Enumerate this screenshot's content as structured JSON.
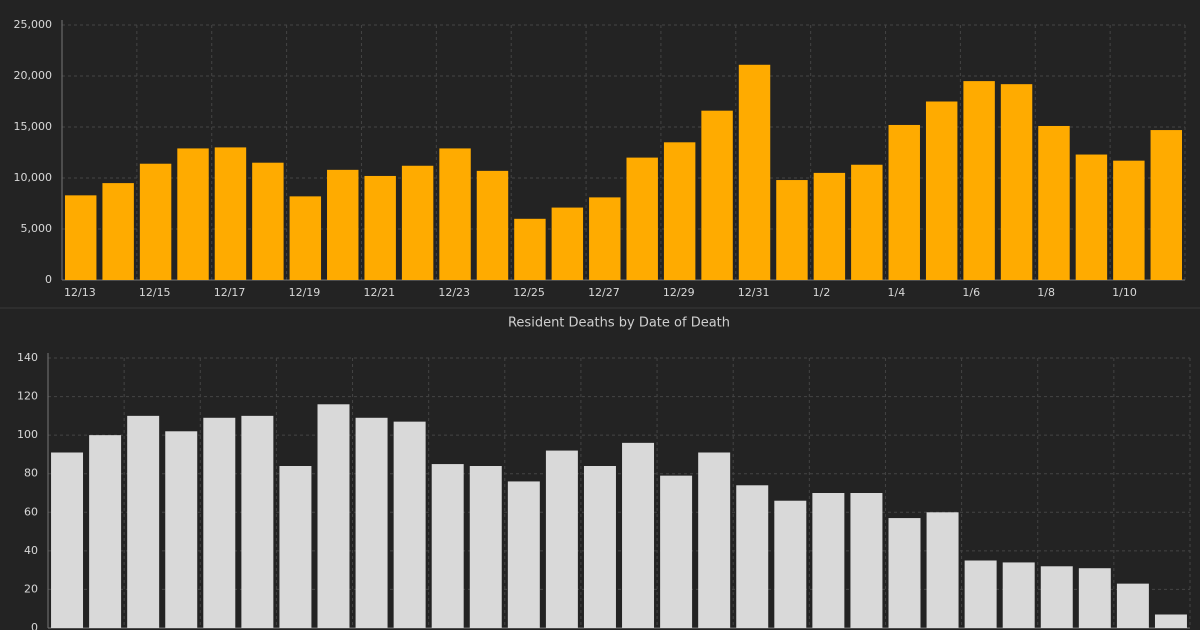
{
  "chart_data": [
    {
      "type": "bar",
      "categories": [
        "12/13",
        null,
        "12/15",
        null,
        "12/17",
        null,
        "12/19",
        null,
        "12/21",
        null,
        "12/23",
        null,
        "12/25",
        null,
        "12/27",
        null,
        "12/29",
        null,
        "12/31",
        null,
        "1/2",
        null,
        "1/4",
        null,
        "1/6",
        null,
        "1/8",
        null,
        "1/10",
        null
      ],
      "values": [
        8300,
        9500,
        11400,
        12900,
        13000,
        11500,
        8200,
        10800,
        10200,
        11200,
        12900,
        10700,
        6000,
        7100,
        8100,
        12000,
        13500,
        16600,
        21100,
        9800,
        10500,
        11300,
        15200,
        17500,
        19500,
        19200,
        15100,
        12300,
        11700,
        14700
      ],
      "color": "#ffab00",
      "ylim": [
        0,
        25000
      ],
      "yticks": [
        0,
        {
          "value": 5000,
          "label": "5,000"
        },
        {
          "value": 10000,
          "label": "10,000"
        },
        {
          "value": 15000,
          "label": "15,000"
        },
        {
          "value": 20000,
          "label": "20,000"
        },
        {
          "value": 25000,
          "label": "25,000"
        }
      ],
      "grid": true
    },
    {
      "type": "bar",
      "title": "Resident Deaths by Date of Death",
      "categories": [
        null,
        null,
        null,
        null,
        null,
        null,
        null,
        null,
        null,
        null,
        null,
        null,
        null,
        null,
        null,
        null,
        null,
        null,
        null,
        null,
        null,
        null,
        null,
        null,
        null,
        null,
        null,
        null,
        null,
        null
      ],
      "values": [
        91,
        100,
        110,
        102,
        109,
        110,
        84,
        116,
        109,
        107,
        85,
        84,
        76,
        92,
        84,
        96,
        79,
        91,
        74,
        66,
        70,
        70,
        57,
        60,
        35,
        34,
        32,
        31,
        23,
        7
      ],
      "color": "#d9d9d9",
      "ylim": [
        0,
        140
      ],
      "yticks": [
        0,
        20,
        40,
        60,
        80,
        100,
        120,
        140
      ],
      "grid": true
    }
  ]
}
